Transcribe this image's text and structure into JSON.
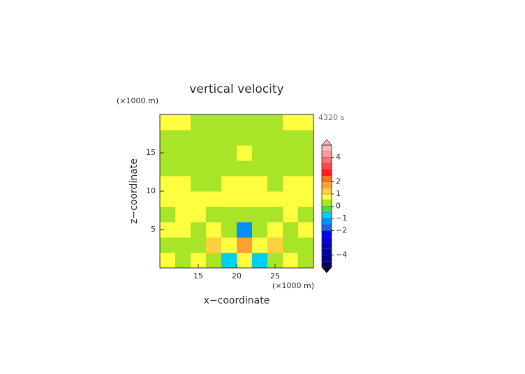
{
  "chart_data": {
    "type": "contour",
    "title": "vertical velocity",
    "y_unit": "(×1000 m)",
    "x_unit": "(×1000 m)",
    "time_label": "4320 s",
    "xlabel": "x−coordinate",
    "ylabel": "z−coordinate",
    "xlim": [
      10,
      30
    ],
    "ylim": [
      0,
      20
    ],
    "xticks": [
      15,
      20,
      25
    ],
    "yticks": [
      5,
      10,
      15
    ],
    "x": [
      11,
      13,
      15,
      17,
      19,
      21,
      23,
      25,
      27,
      29
    ],
    "y": [
      1,
      3,
      5,
      7,
      9,
      11,
      13,
      15,
      17,
      19
    ],
    "z": [
      [
        0.6,
        0.2,
        0.6,
        0.2,
        -0.7,
        0.6,
        -0.7,
        0.2,
        0.6,
        0.2
      ],
      [
        0.2,
        0.2,
        0.2,
        1.2,
        0.6,
        1.8,
        0.6,
        1.2,
        0.2,
        0.2
      ],
      [
        0.6,
        0.6,
        0.2,
        0.6,
        0.2,
        -1.2,
        0.2,
        0.6,
        0.2,
        0.6
      ],
      [
        0.2,
        0.6,
        0.6,
        0.2,
        0.2,
        0.2,
        0.2,
        0.2,
        0.6,
        0.2
      ],
      [
        0.6,
        0.6,
        0.6,
        0.6,
        0.6,
        0.6,
        0.6,
        0.6,
        0.6,
        0.6
      ],
      [
        0.6,
        0.6,
        0.2,
        0.2,
        0.6,
        0.6,
        0.6,
        0.2,
        0.6,
        0.6
      ],
      [
        0.2,
        0.2,
        0.2,
        0.2,
        0.2,
        0.2,
        0.2,
        0.2,
        0.2,
        0.2
      ],
      [
        0.2,
        0.2,
        0.2,
        0.2,
        0.2,
        0.6,
        0.2,
        0.2,
        0.2,
        0.2
      ],
      [
        0.2,
        0.2,
        0.2,
        0.2,
        0.2,
        0.2,
        0.2,
        0.2,
        0.2,
        0.2
      ],
      [
        0.6,
        0.6,
        0.2,
        0.2,
        0.2,
        0.2,
        0.2,
        0.2,
        0.6,
        0.6
      ]
    ],
    "levels": [
      -5,
      -4.5,
      -4,
      -3.5,
      -3,
      -2.5,
      -2,
      -1.5,
      -1,
      -0.5,
      0,
      0.5,
      1,
      1.5,
      2,
      2.5,
      3,
      3.5,
      4,
      4.5,
      5
    ],
    "colors": [
      "#000060",
      "#000080",
      "#0000a0",
      "#0000c0",
      "#0000e0",
      "#0000ff",
      "#2060ff",
      "#0090ff",
      "#00d0f0",
      "#40e040",
      "#a8e428",
      "#ffff40",
      "#ffd040",
      "#ffa030",
      "#ff7020",
      "#ff2020",
      "#ff4848",
      "#ff7070",
      "#ff9898",
      "#ffb8b8"
    ],
    "under_color": "#000000",
    "over_color": "#ffb8b8",
    "cbar_ticks": [
      {
        "value": 4,
        "label": "4"
      },
      {
        "value": 2,
        "label": "2"
      },
      {
        "value": 1,
        "label": "1"
      },
      {
        "value": 0,
        "label": "0"
      },
      {
        "value": -1,
        "label": "−1"
      },
      {
        "value": -2,
        "label": "−2"
      },
      {
        "value": -4,
        "label": "−4"
      }
    ]
  }
}
